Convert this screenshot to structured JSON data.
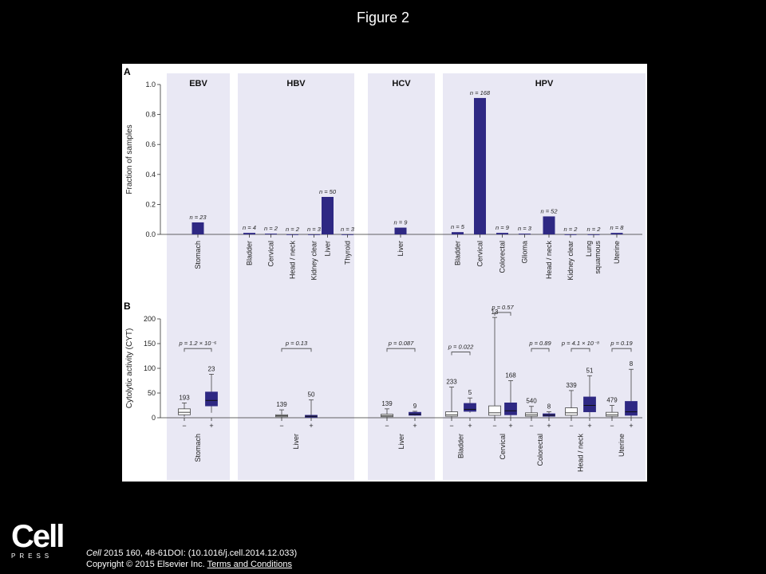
{
  "slide_title": "Figure 2",
  "logo": {
    "main": "Cell",
    "sub": "PRESS"
  },
  "citation": {
    "line1_journal": "Cell",
    "line1_rest": " 2015 160, 48-61DOI: (10.1016/j.cell.2014.12.033)",
    "line2": "Copyright © 2015 Elsevier Inc. ",
    "link": "Terms and Conditions"
  },
  "colors": {
    "bar": "#2e2883",
    "panel_bg": "#e9e8f4",
    "box_neg": "#ffffff"
  },
  "chart_data": [
    {
      "panel": "A",
      "type": "bar",
      "ylabel": "Fraction of samples",
      "ylim": [
        0,
        1.0
      ],
      "yticks": [
        "0.0",
        "0.2",
        "0.4",
        "0.6",
        "0.8",
        "1.0"
      ],
      "groups": [
        {
          "virus": "EBV",
          "bars": [
            {
              "category": "Stomach",
              "value": 0.08,
              "n": "n = 23"
            }
          ]
        },
        {
          "virus": "HBV",
          "bars": [
            {
              "category": "Bladder",
              "value": 0.01,
              "n": "n = 4"
            },
            {
              "category": "Cervical",
              "value": 0.005,
              "n": "n = 2"
            },
            {
              "category": "Head / neck",
              "value": 0.0,
              "n": "n = 2"
            },
            {
              "category": "Kidney clear",
              "value": 0.0,
              "n": "n = 3"
            },
            {
              "category": "Liver",
              "value": 0.25,
              "n": "n = 50"
            },
            {
              "category": "Thyroid",
              "value": 0.0,
              "n": "n = 3"
            }
          ]
        },
        {
          "virus": "HCV",
          "bars": [
            {
              "category": "Liver",
              "value": 0.045,
              "n": "n = 9"
            }
          ]
        },
        {
          "virus": "HPV",
          "bars": [
            {
              "category": "Bladder",
              "value": 0.015,
              "n": "n = 5"
            },
            {
              "category": "Cervical",
              "value": 0.91,
              "n": "n = 168"
            },
            {
              "category": "Colorectal",
              "value": 0.01,
              "n": "n = 9"
            },
            {
              "category": "Glioma",
              "value": 0.005,
              "n": "n = 3"
            },
            {
              "category": "Head / neck",
              "value": 0.12,
              "n": "n = 52"
            },
            {
              "category": "Kidney clear",
              "value": 0.0,
              "n": "n = 2"
            },
            {
              "category": "Lung squamous",
              "value": 0.0,
              "n": "n = 2"
            },
            {
              "category": "Uterine",
              "value": 0.01,
              "n": "n = 8"
            }
          ]
        }
      ]
    },
    {
      "panel": "B",
      "type": "box",
      "ylabel": "Cytolytic activity (CYT)",
      "ylim": [
        0,
        200
      ],
      "yticks": [
        "0",
        "50",
        "100",
        "150",
        "200"
      ],
      "sign_labels": [
        "−",
        "+"
      ],
      "groups": [
        {
          "virus": "EBV",
          "items": [
            {
              "category": "Stomach",
              "p": "p = 1.2 × 10⁻⁶",
              "neg": {
                "n": "193",
                "min": 2,
                "q1": 6,
                "median": 11,
                "q3": 18,
                "max": 30
              },
              "pos": {
                "n": "23",
                "min": 10,
                "q1": 24,
                "median": 35,
                "q3": 52,
                "max": 88
              }
            }
          ]
        },
        {
          "virus": "HBV",
          "items": [
            {
              "category": "Liver",
              "p": "p = 0.13",
              "neg": {
                "n": "139",
                "min": 0,
                "q1": 2,
                "median": 4,
                "q3": 6,
                "max": 16
              },
              "pos": {
                "n": "50",
                "min": 0,
                "q1": 1,
                "median": 3,
                "q3": 5,
                "max": 36
              }
            }
          ]
        },
        {
          "virus": "HCV",
          "items": [
            {
              "category": "Liver",
              "p": "p = 0.087",
              "neg": {
                "n": "139",
                "min": 0,
                "q1": 2,
                "median": 4,
                "q3": 7,
                "max": 18
              },
              "pos": {
                "n": "9",
                "min": 4,
                "q1": 5,
                "median": 7,
                "q3": 11,
                "max": 13
              }
            }
          ]
        },
        {
          "virus": "HPV",
          "items": [
            {
              "category": "Bladder",
              "p": "p = 0.022",
              "neg": {
                "n": "233",
                "min": 0,
                "q1": 3,
                "median": 6,
                "q3": 12,
                "max": 62
              },
              "pos": {
                "n": "5",
                "min": 10,
                "q1": 13,
                "median": 17,
                "q3": 29,
                "max": 40
              }
            },
            {
              "category": "Cervical",
              "p": "p = 0.57",
              "neg": {
                "n": "13",
                "min": 0,
                "q1": 5,
                "median": 10,
                "q3": 24,
                "max": 203
              },
              "pos": {
                "n": "168",
                "min": 0,
                "q1": 6,
                "median": 14,
                "q3": 30,
                "max": 75
              }
            },
            {
              "category": "Colorectal",
              "p": "p = 0.89",
              "neg": {
                "n": "540",
                "min": 0,
                "q1": 3,
                "median": 6,
                "q3": 10,
                "max": 23
              },
              "pos": {
                "n": "8",
                "min": 1,
                "q1": 3,
                "median": 5,
                "q3": 8,
                "max": 12
              }
            },
            {
              "category": "Head / neck",
              "p": "p = 4.1 × 10⁻⁸",
              "neg": {
                "n": "339",
                "min": 0,
                "q1": 5,
                "median": 10,
                "q3": 20,
                "max": 55
              },
              "pos": {
                "n": "51",
                "min": 2,
                "q1": 12,
                "median": 25,
                "q3": 42,
                "max": 85
              }
            },
            {
              "category": "Uterine",
              "p": "p = 0.19",
              "neg": {
                "n": "479",
                "min": 0,
                "q1": 3,
                "median": 6,
                "q3": 11,
                "max": 25
              },
              "pos": {
                "n": "8",
                "min": 0,
                "q1": 5,
                "median": 12,
                "q3": 33,
                "max": 98
              }
            }
          ]
        }
      ]
    }
  ]
}
